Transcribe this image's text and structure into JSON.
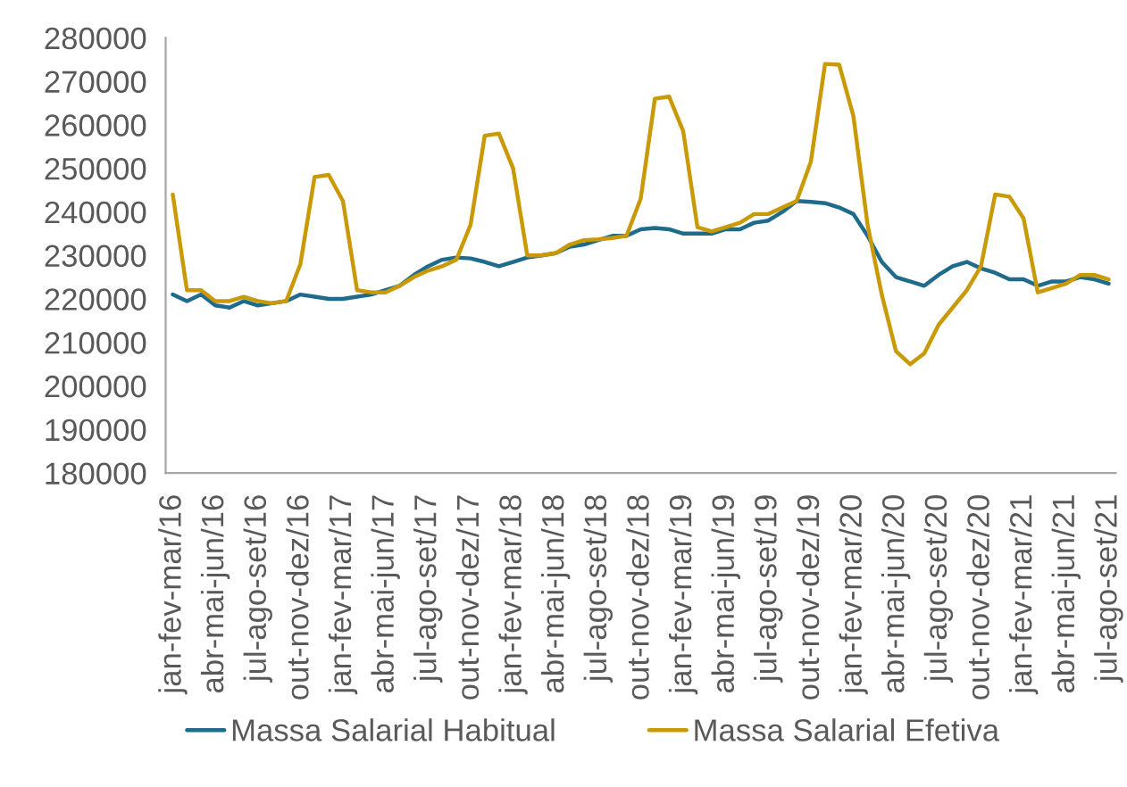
{
  "chart_data": {
    "type": "line",
    "categories": [
      "jan-fev-mar/16",
      null,
      null,
      "abr-mai-jun/16",
      null,
      null,
      "jul-ago-set/16",
      null,
      null,
      "out-nov-dez/16",
      null,
      null,
      "jan-fev-mar/17",
      null,
      null,
      "abr-mai-jun/17",
      null,
      null,
      "jul-ago-set/17",
      null,
      null,
      "out-nov-dez/17",
      null,
      null,
      "jan-fev-mar/18",
      null,
      null,
      "abr-mai-jun/18",
      null,
      null,
      "jul-ago-set/18",
      null,
      null,
      "out-nov-dez/18",
      null,
      null,
      "jan-fev-mar/19",
      null,
      null,
      "abr-mai-jun/19",
      null,
      null,
      "jul-ago-set/19",
      null,
      null,
      "out-nov-dez/19",
      null,
      null,
      "jan-fev-mar/20",
      null,
      null,
      "abr-mai-jun/20",
      null,
      null,
      "jul-ago-set/20",
      null,
      null,
      "out-nov-dez/20",
      null,
      null,
      "jan-fev-mar/21",
      null,
      null,
      "abr-mai-jun/21",
      null,
      null,
      "jul-ago-set/21"
    ],
    "series": [
      {
        "name": "Massa Salarial Habitual",
        "color": "#1f6b8c",
        "values": [
          221000,
          219500,
          221000,
          218500,
          218000,
          219500,
          218500,
          219000,
          219500,
          221000,
          220500,
          220000,
          220000,
          220500,
          221000,
          222000,
          223000,
          225500,
          227500,
          229000,
          229500,
          229300,
          228500,
          227500,
          228500,
          229500,
          230000,
          230500,
          232000,
          232500,
          233500,
          234500,
          234500,
          236000,
          236300,
          236000,
          235000,
          235000,
          235000,
          236000,
          236000,
          237500,
          238000,
          240000,
          242500,
          242300,
          242000,
          241000,
          239500,
          234500,
          228500,
          225000,
          224000,
          223000,
          225500,
          227500,
          228500,
          227000,
          226000,
          224500,
          224500,
          223000,
          224000,
          224000,
          225000,
          224500,
          223500
        ]
      },
      {
        "name": "Massa Salarial Efetiva",
        "color": "#c99a06",
        "values": [
          244000,
          222000,
          222000,
          219500,
          219500,
          220500,
          219500,
          219000,
          219500,
          228000,
          248000,
          248500,
          242500,
          222000,
          221500,
          221500,
          223000,
          225000,
          226500,
          227500,
          229000,
          237000,
          257500,
          258000,
          250000,
          230000,
          230000,
          230500,
          232500,
          233500,
          233700,
          234000,
          234500,
          243000,
          266000,
          266500,
          258500,
          236500,
          235500,
          236500,
          237500,
          239500,
          239500,
          241000,
          242500,
          251500,
          274000,
          273800,
          262000,
          237000,
          221000,
          208000,
          205000,
          207500,
          214000,
          218000,
          222000,
          227500,
          244000,
          243500,
          238500,
          221500,
          222500,
          223500,
          225500,
          225500,
          224500
        ]
      }
    ],
    "ylim": [
      180000,
      280000
    ],
    "yticks": [
      180000,
      190000,
      200000,
      210000,
      220000,
      230000,
      240000,
      250000,
      260000,
      270000,
      280000
    ],
    "grid": false,
    "legend": "bottom",
    "marker": "none",
    "line_style": "solid"
  }
}
